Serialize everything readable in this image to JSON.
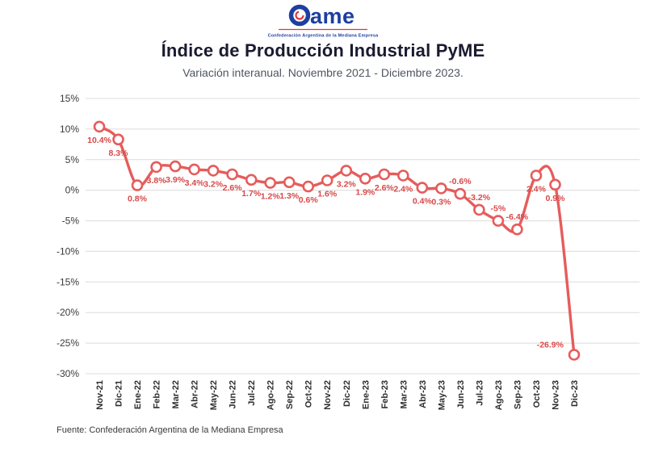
{
  "logo": {
    "name": "Came",
    "wordmark": "ame",
    "tagline": "Confederación Argentina de la Mediana Empresa"
  },
  "header": {
    "title": "Índice de Producción Industrial PyME",
    "subtitle": "Variación interanual. Noviembre 2021 - Diciembre 2023."
  },
  "footer": {
    "source": "Fuente: Confederación Argentina de la Mediana Empresa"
  },
  "colors": {
    "line": "#e65c5c",
    "label": "#d94848",
    "grid": "#dcdcdc",
    "axis_text": "#3a3a3a",
    "title": "#1a1a30",
    "logo_blue": "#1d3fa0",
    "logo_red": "#d93a3a"
  },
  "chart_data": {
    "type": "line",
    "title": "Índice de Producción Industrial PyME",
    "subtitle": "Variación interanual. Noviembre 2021 - Diciembre 2023.",
    "xlabel": "",
    "ylabel": "",
    "categories": [
      "Nov-21",
      "Dic-21",
      "Ene-22",
      "Feb-22",
      "Mar-22",
      "Abr-22",
      "May-22",
      "Jun-22",
      "Jul-22",
      "Ago-22",
      "Sep-22",
      "Oct-22",
      "Nov-22",
      "Dic-22",
      "Ene-23",
      "Feb-23",
      "Mar-23",
      "Abr-23",
      "May-23",
      "Jun-23",
      "Jul-23",
      "Ago-23",
      "Sep-23",
      "Oct-23",
      "Nov-23",
      "Dic-23"
    ],
    "values": [
      10.4,
      8.3,
      0.8,
      3.8,
      3.9,
      3.4,
      3.2,
      2.6,
      1.7,
      1.2,
      1.3,
      0.6,
      1.6,
      3.2,
      1.9,
      2.6,
      2.4,
      0.4,
      0.3,
      -0.6,
      -3.2,
      -5,
      -6.4,
      2.4,
      0.9,
      -26.9
    ],
    "labels": [
      "10.4%",
      "8.3%",
      "0.8%",
      "3.8%",
      "3.9%",
      "3.4%",
      "3.2%",
      "2.6%",
      "1.7%",
      "1.2%",
      "1.3%",
      "0.6%",
      "1.6%",
      "3.2%",
      "1.9%",
      "2.6%",
      "2.4%",
      "0.4%",
      "0.3%",
      "-0.6%",
      "-3.2%",
      "-5%",
      "-6.4%",
      "2.4%",
      "0.9%",
      "-26.9%"
    ],
    "ylim": [
      -30,
      15
    ],
    "yticks": [
      15,
      10,
      5,
      0,
      -5,
      -10,
      -15,
      -20,
      -25,
      -30
    ],
    "ytick_labels": [
      "15%",
      "10%",
      "5%",
      "0%",
      "-5%",
      "-10%",
      "-15%",
      "-20%",
      "-25%",
      "-30%"
    ],
    "grid": true,
    "legend": "none",
    "smooth": true,
    "marker": "open-circle",
    "x_label_rotation": 90
  }
}
